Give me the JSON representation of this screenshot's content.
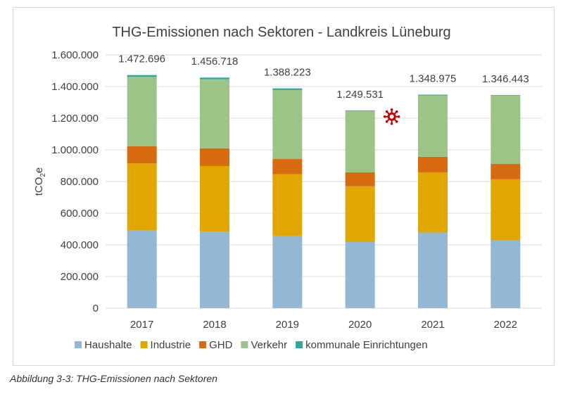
{
  "caption": "Abbildung 3-3: THG-Emissionen nach Sektoren",
  "chart_data": {
    "type": "bar",
    "stacked": true,
    "title": "THG-Emissionen nach Sektoren - Landkreis Lüneburg",
    "ylabel_main": "tCO",
    "ylabel_sub": "2",
    "ylabel_tail": "e",
    "ylim": [
      0,
      1600000
    ],
    "yticks": [
      "0",
      "200.000",
      "400.000",
      "600.000",
      "800.000",
      "1.000.000",
      "1.200.000",
      "1.400.000",
      "1.600.000"
    ],
    "grid": true,
    "legend_position": "bottom",
    "categories": [
      "2017",
      "2018",
      "2019",
      "2020",
      "2021",
      "2022"
    ],
    "totals_labels": [
      "1.472.696",
      "1.456.718",
      "1.388.223",
      "1.249.531",
      "1.348.975",
      "1.346.443"
    ],
    "series": [
      {
        "name": "Haushalte",
        "color": "#92b8d6",
        "values": [
          490000,
          484000,
          458000,
          418000,
          478000,
          428000
        ]
      },
      {
        "name": "Industrie",
        "color": "#e2a600",
        "values": [
          425000,
          414000,
          388000,
          352000,
          380000,
          386000
        ]
      },
      {
        "name": "GHD",
        "color": "#d86a10",
        "values": [
          108000,
          112000,
          96000,
          88000,
          98000,
          97000
        ]
      },
      {
        "name": "Verkehr",
        "color": "#9cc486",
        "values": [
          438000,
          436000,
          436000,
          388000,
          388000,
          432000
        ]
      },
      {
        "name": "kommunale Einrichtungen",
        "color": "#33a89a",
        "values": [
          11696,
          10718,
          10223,
          3531,
          4975,
          3443
        ]
      }
    ],
    "covid_marker_icon": "virus-icon",
    "covid_marker_color": "#c00000"
  }
}
